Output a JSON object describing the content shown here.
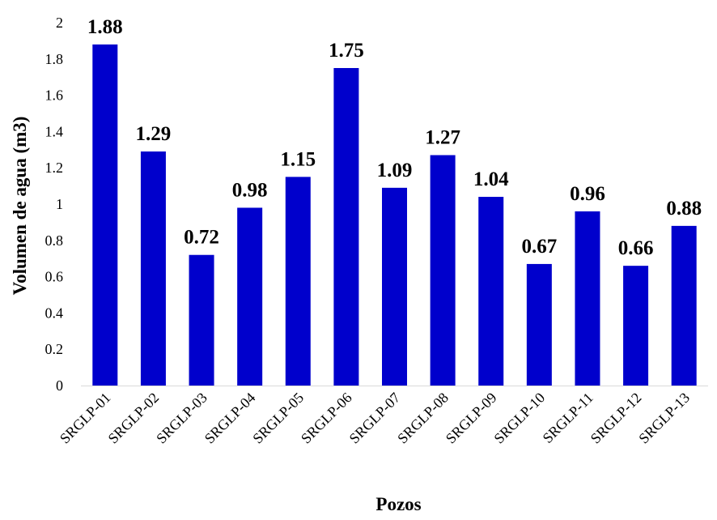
{
  "chart_data": {
    "type": "bar",
    "title": "",
    "xlabel": "Pozos",
    "ylabel": "Volumen de agua (m3)",
    "categories": [
      "SRGLP-01",
      "SRGLP-02",
      "SRGLP-03",
      "SRGLP-04",
      "SRGLP-05",
      "SRGLP-06",
      "SRGLP-07",
      "SRGLP-08",
      "SRGLP-09",
      "SRGLP-10",
      "SRGLP-11",
      "SRGLP-12",
      "SRGLP-13"
    ],
    "values": [
      1.88,
      1.29,
      0.72,
      0.98,
      1.15,
      1.75,
      1.09,
      1.27,
      1.04,
      0.67,
      0.96,
      0.66,
      0.88
    ],
    "data_labels": [
      "1.88",
      "1.29",
      "0.72",
      "0.98",
      "1.15",
      "1.75",
      "1.09",
      "1.27",
      "1.04",
      "0.67",
      "0.96",
      "0.66",
      "0.88"
    ],
    "ylim": [
      0,
      2
    ],
    "yticks": [
      "0",
      "0.2",
      "0.4",
      "0.6",
      "0.8",
      "1",
      "1.2",
      "1.4",
      "1.6",
      "1.8",
      "2"
    ],
    "grid": false,
    "legend": "none",
    "bar_color": "#0000cc"
  }
}
